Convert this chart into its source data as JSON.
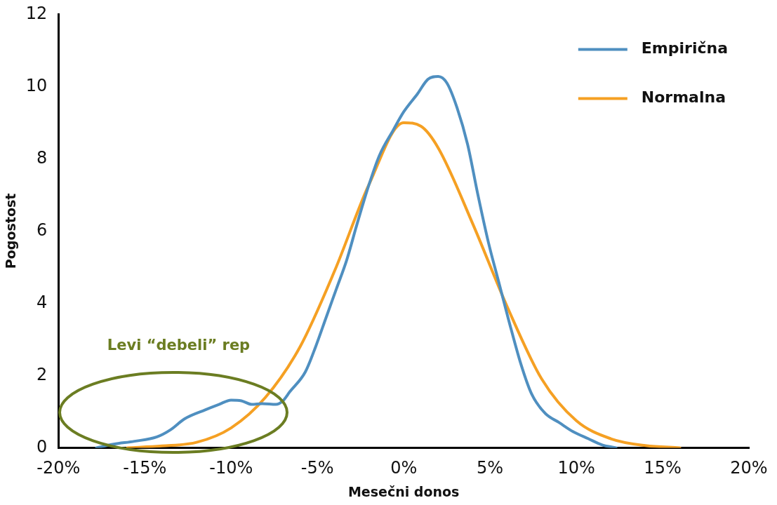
{
  "chart_data": {
    "type": "line",
    "xlabel": "Mesečni donos",
    "ylabel": "Pogostost",
    "xlim": [
      -20,
      20
    ],
    "ylim": [
      0,
      12
    ],
    "xticks": [
      {
        "value": -20,
        "label": "-20%"
      },
      {
        "value": -15,
        "label": "-15%"
      },
      {
        "value": -10,
        "label": "-10%"
      },
      {
        "value": -5,
        "label": "-5%"
      },
      {
        "value": 0,
        "label": "0%"
      },
      {
        "value": 5,
        "label": "5%"
      },
      {
        "value": 10,
        "label": "10%"
      },
      {
        "value": 15,
        "label": "15%"
      },
      {
        "value": 20,
        "label": "20%"
      }
    ],
    "yticks": [
      0,
      2,
      4,
      6,
      8,
      10,
      12
    ],
    "grid": false,
    "legend": "top right",
    "marker": "none",
    "line_style": "solid",
    "annotations": [
      "Levi “debeli” rep"
    ],
    "series": [
      {
        "name": "Empirična",
        "color": "#4f8fc0",
        "x": [
          -17.8,
          -16.8,
          -15.6,
          -14.3,
          -13.5,
          -12.7,
          -11.5,
          -10.7,
          -10.0,
          -9.4,
          -8.8,
          -8.2,
          -7.4,
          -7.0,
          -6.6,
          -5.7,
          -5.1,
          -4.5,
          -3.9,
          -3.3,
          -2.7,
          -2.0,
          -1.4,
          -0.6,
          0,
          0.8,
          1.4,
          2.0,
          2.5,
          3.1,
          3.7,
          4.3,
          4.9,
          5.5,
          6.1,
          6.8,
          7.4,
          8.2,
          9.0,
          9.8,
          10.7,
          11.5,
          12.3
        ],
        "values": [
          0,
          0.1,
          0.18,
          0.3,
          0.5,
          0.8,
          1.05,
          1.2,
          1.32,
          1.3,
          1.2,
          1.22,
          1.2,
          1.3,
          1.55,
          2.1,
          2.8,
          3.6,
          4.4,
          5.2,
          6.2,
          7.3,
          8.1,
          8.8,
          9.3,
          9.8,
          10.2,
          10.28,
          10.1,
          9.4,
          8.4,
          7.0,
          5.7,
          4.6,
          3.5,
          2.3,
          1.5,
          0.95,
          0.7,
          0.45,
          0.25,
          0.08,
          0
        ]
      },
      {
        "name": "Normalna",
        "color": "#f5a023",
        "x": [
          -16,
          -14,
          -12,
          -10,
          -8,
          -6,
          -4,
          -2,
          0,
          1,
          2,
          4,
          6,
          8,
          10,
          12,
          14,
          16
        ],
        "values": [
          0,
          0.05,
          0.15,
          0.55,
          1.4,
          2.8,
          4.9,
          7.3,
          9.0,
          8.9,
          8.3,
          6.2,
          3.9,
          1.9,
          0.75,
          0.25,
          0.06,
          0
        ]
      }
    ]
  }
}
